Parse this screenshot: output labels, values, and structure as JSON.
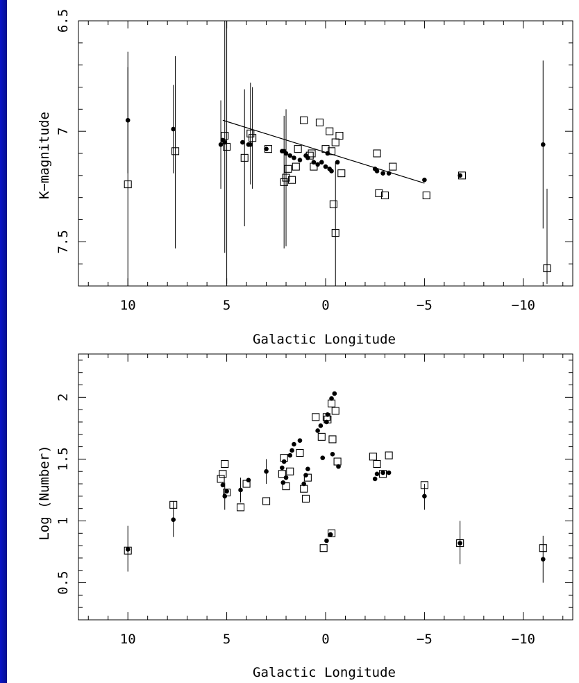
{
  "chart_data": [
    {
      "type": "scatter",
      "xlabel": "Galactic Longitude",
      "ylabel": "K−magnitude",
      "x_ticks": [
        "10",
        "5",
        "0",
        "−5",
        "−10"
      ],
      "y_ticks": [
        "6.5",
        "7",
        "7.5"
      ],
      "xlim": [
        12.5,
        -12.5
      ],
      "ylim": [
        6.5,
        7.7
      ],
      "y_inverted": true,
      "fit_line": {
        "x": [
          5.2,
          -5.0
        ],
        "y": [
          6.95,
          7.235
        ]
      },
      "series": [
        {
          "marker": "filled-circle",
          "points": [
            {
              "x": 10.0,
              "y": 6.95,
              "lo": 6.71,
              "hi": 7.19
            },
            {
              "x": 7.7,
              "y": 6.99,
              "lo": 6.79,
              "hi": 7.19
            },
            {
              "x": 5.3,
              "y": 7.06,
              "lo": 6.86,
              "hi": 7.26
            },
            {
              "x": 5.2,
              "y": 7.04
            },
            {
              "x": 5.1,
              "y": 7.05
            },
            {
              "x": 4.2,
              "y": 7.05
            },
            {
              "x": 3.9,
              "y": 7.06
            },
            {
              "x": 3.8,
              "y": 7.06
            },
            {
              "x": 3.0,
              "y": 7.08
            },
            {
              "x": 2.2,
              "y": 7.09
            },
            {
              "x": 2.1,
              "y": 7.09
            },
            {
              "x": 2.0,
              "y": 7.1
            },
            {
              "x": 1.8,
              "y": 7.11
            },
            {
              "x": 1.6,
              "y": 7.12
            },
            {
              "x": 1.3,
              "y": 7.13
            },
            {
              "x": 1.0,
              "y": 7.11
            },
            {
              "x": 0.9,
              "y": 7.12
            },
            {
              "x": 0.6,
              "y": 7.14
            },
            {
              "x": 0.4,
              "y": 7.15
            },
            {
              "x": 0.2,
              "y": 7.14
            },
            {
              "x": 0.0,
              "y": 7.16
            },
            {
              "x": -0.1,
              "y": 7.1
            },
            {
              "x": -0.2,
              "y": 7.17
            },
            {
              "x": -0.3,
              "y": 7.18
            },
            {
              "x": -0.6,
              "y": 7.14
            },
            {
              "x": -2.5,
              "y": 7.17
            },
            {
              "x": -2.6,
              "y": 7.18
            },
            {
              "x": -2.9,
              "y": 7.19
            },
            {
              "x": -3.2,
              "y": 7.19
            },
            {
              "x": -5.0,
              "y": 7.22
            },
            {
              "x": -6.8,
              "y": 7.2
            },
            {
              "x": -11.0,
              "y": 7.06,
              "lo": 6.68,
              "hi": 7.44
            }
          ]
        },
        {
          "marker": "open-square",
          "points": [
            {
              "x": 10.0,
              "y": 7.24,
              "lo": 6.64,
              "hi": 7.83
            },
            {
              "x": 7.6,
              "y": 7.09,
              "lo": 6.66,
              "hi": 7.53
            },
            {
              "x": 5.1,
              "y": 7.02,
              "lo": 6.49,
              "hi": 7.55
            },
            {
              "x": 5.0,
              "y": 7.07,
              "lo": 6.45,
              "hi": 7.69
            },
            {
              "x": 4.1,
              "y": 7.12,
              "lo": 6.81,
              "hi": 7.43
            },
            {
              "x": 3.8,
              "y": 7.01,
              "lo": 6.78,
              "hi": 7.24
            },
            {
              "x": 3.7,
              "y": 7.03,
              "lo": 6.8,
              "hi": 7.26
            },
            {
              "x": 2.9,
              "y": 7.08
            },
            {
              "x": 2.1,
              "y": 7.23,
              "lo": 6.93,
              "hi": 7.53
            },
            {
              "x": 2.0,
              "y": 7.21,
              "lo": 6.9,
              "hi": 7.52
            },
            {
              "x": 1.9,
              "y": 7.17
            },
            {
              "x": 1.7,
              "y": 7.22
            },
            {
              "x": 1.5,
              "y": 7.16
            },
            {
              "x": 1.4,
              "y": 7.08
            },
            {
              "x": 1.1,
              "y": 6.95
            },
            {
              "x": 0.8,
              "y": 7.11
            },
            {
              "x": 0.7,
              "y": 7.1
            },
            {
              "x": 0.6,
              "y": 7.16
            },
            {
              "x": 0.3,
              "y": 6.96
            },
            {
              "x": 0.0,
              "y": 7.08
            },
            {
              "x": -0.2,
              "y": 7.0
            },
            {
              "x": -0.3,
              "y": 7.09
            },
            {
              "x": -0.5,
              "y": 7.05
            },
            {
              "x": -0.4,
              "y": 7.33
            },
            {
              "x": -0.5,
              "y": 7.46,
              "lo": 7.14,
              "hi": 7.7
            },
            {
              "x": -0.7,
              "y": 7.02
            },
            {
              "x": -0.8,
              "y": 7.19
            },
            {
              "x": -2.6,
              "y": 7.1
            },
            {
              "x": -2.7,
              "y": 7.28
            },
            {
              "x": -3.0,
              "y": 7.29
            },
            {
              "x": -3.4,
              "y": 7.16
            },
            {
              "x": -5.1,
              "y": 7.29
            },
            {
              "x": -6.9,
              "y": 7.2
            },
            {
              "x": -11.2,
              "y": 7.62,
              "lo": 7.26,
              "hi": 7.69
            }
          ]
        }
      ]
    },
    {
      "type": "scatter",
      "xlabel": "Galactic Longitude",
      "ylabel": "Log (Number)",
      "x_ticks": [
        "10",
        "5",
        "0",
        "−5",
        "−10"
      ],
      "y_ticks": [
        "0.5",
        "1",
        "1.5",
        "2"
      ],
      "xlim": [
        12.5,
        -12.5
      ],
      "ylim": [
        0.2,
        2.35
      ],
      "series": [
        {
          "marker": "filled-circle",
          "points": [
            {
              "x": 10.0,
              "y": 0.77,
              "lo": 0.59,
              "hi": 0.96
            },
            {
              "x": 7.7,
              "y": 1.01,
              "lo": 0.87,
              "hi": 1.16
            },
            {
              "x": 5.2,
              "y": 1.29
            },
            {
              "x": 5.1,
              "y": 1.2,
              "lo": 1.09,
              "hi": 1.31
            },
            {
              "x": 5.0,
              "y": 1.24
            },
            {
              "x": 4.3,
              "y": 1.25,
              "lo": 1.15,
              "hi": 1.35
            },
            {
              "x": 3.9,
              "y": 1.33
            },
            {
              "x": 3.0,
              "y": 1.4,
              "lo": 1.3,
              "hi": 1.5
            },
            {
              "x": 2.2,
              "y": 1.43
            },
            {
              "x": 2.15,
              "y": 1.31
            },
            {
              "x": 2.1,
              "y": 1.48
            },
            {
              "x": 2.0,
              "y": 1.35
            },
            {
              "x": 1.8,
              "y": 1.53
            },
            {
              "x": 1.7,
              "y": 1.57
            },
            {
              "x": 1.6,
              "y": 1.62
            },
            {
              "x": 1.3,
              "y": 1.65
            },
            {
              "x": 1.1,
              "y": 1.3
            },
            {
              "x": 1.0,
              "y": 1.37
            },
            {
              "x": 0.9,
              "y": 1.42
            },
            {
              "x": 0.4,
              "y": 1.73
            },
            {
              "x": 0.25,
              "y": 1.77
            },
            {
              "x": 0.15,
              "y": 1.51
            },
            {
              "x": -0.05,
              "y": 1.8
            },
            {
              "x": -0.1,
              "y": 1.86
            },
            {
              "x": -0.05,
              "y": 0.84
            },
            {
              "x": -0.25,
              "y": 0.89
            },
            {
              "x": -0.3,
              "y": 1.99
            },
            {
              "x": -0.35,
              "y": 1.54
            },
            {
              "x": -0.45,
              "y": 2.03
            },
            {
              "x": -0.65,
              "y": 1.44
            },
            {
              "x": -2.5,
              "y": 1.34
            },
            {
              "x": -2.6,
              "y": 1.38
            },
            {
              "x": -2.9,
              "y": 1.39
            },
            {
              "x": -3.2,
              "y": 1.39
            },
            {
              "x": -5.0,
              "y": 1.2,
              "lo": 1.09,
              "hi": 1.3
            },
            {
              "x": -6.8,
              "y": 0.82,
              "lo": 0.65,
              "hi": 1.0
            },
            {
              "x": -11.0,
              "y": 0.69,
              "lo": 0.5,
              "hi": 0.88
            }
          ]
        },
        {
          "marker": "open-square",
          "points": [
            {
              "x": 10.0,
              "y": 0.76
            },
            {
              "x": 7.7,
              "y": 1.13
            },
            {
              "x": 5.3,
              "y": 1.34
            },
            {
              "x": 5.2,
              "y": 1.38
            },
            {
              "x": 5.1,
              "y": 1.46
            },
            {
              "x": 5.0,
              "y": 1.23
            },
            {
              "x": 4.3,
              "y": 1.11
            },
            {
              "x": 4.0,
              "y": 1.3
            },
            {
              "x": 3.0,
              "y": 1.16
            },
            {
              "x": 2.2,
              "y": 1.38
            },
            {
              "x": 2.1,
              "y": 1.51
            },
            {
              "x": 2.0,
              "y": 1.28
            },
            {
              "x": 1.8,
              "y": 1.4
            },
            {
              "x": 1.3,
              "y": 1.55
            },
            {
              "x": 1.1,
              "y": 1.26
            },
            {
              "x": 1.0,
              "y": 1.18
            },
            {
              "x": 0.9,
              "y": 1.35
            },
            {
              "x": 0.5,
              "y": 1.84
            },
            {
              "x": 0.2,
              "y": 1.68
            },
            {
              "x": -0.05,
              "y": 1.84
            },
            {
              "x": -0.1,
              "y": 1.82
            },
            {
              "x": 0.1,
              "y": 0.78
            },
            {
              "x": -0.3,
              "y": 0.9
            },
            {
              "x": -0.3,
              "y": 1.95
            },
            {
              "x": -0.35,
              "y": 1.66
            },
            {
              "x": -0.5,
              "y": 1.89
            },
            {
              "x": -0.6,
              "y": 1.48
            },
            {
              "x": -2.4,
              "y": 1.52
            },
            {
              "x": -2.6,
              "y": 1.46
            },
            {
              "x": -2.9,
              "y": 1.38
            },
            {
              "x": -3.2,
              "y": 1.53
            },
            {
              "x": -5.0,
              "y": 1.29
            },
            {
              "x": -6.8,
              "y": 0.82
            },
            {
              "x": -11.0,
              "y": 0.78
            }
          ]
        }
      ]
    }
  ]
}
